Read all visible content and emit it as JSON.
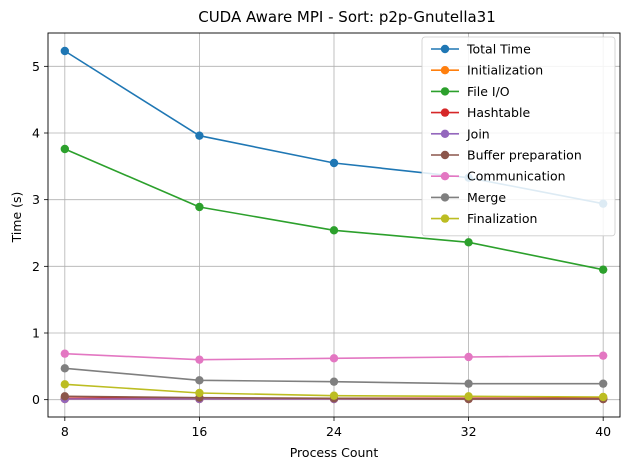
{
  "chart_data": {
    "type": "line",
    "title": "CUDA Aware MPI - Sort: p2p-Gnutella31",
    "xlabel": "Process Count",
    "ylabel": "Time (s)",
    "x": [
      8,
      16,
      24,
      32,
      40
    ],
    "xticks": [
      "8",
      "16",
      "24",
      "32",
      "40"
    ],
    "yticks": [
      "0",
      "1",
      "2",
      "3",
      "4",
      "5"
    ],
    "xlim": [
      7,
      41
    ],
    "ylim": [
      -0.26,
      5.5
    ],
    "grid": true,
    "legend_position": "top-right",
    "series": [
      {
        "name": "Total Time",
        "color": "#1f77b4",
        "values": [
          5.23,
          3.96,
          3.55,
          3.33,
          2.94
        ]
      },
      {
        "name": "Initialization",
        "color": "#ff7f0e",
        "values": [
          0.01,
          0.01,
          0.01,
          0.01,
          0.01
        ]
      },
      {
        "name": "File I/O",
        "color": "#2ca02c",
        "values": [
          3.76,
          2.89,
          2.54,
          2.36,
          1.95
        ]
      },
      {
        "name": "Hashtable",
        "color": "#d62728",
        "values": [
          0.02,
          0.02,
          0.02,
          0.02,
          0.02
        ]
      },
      {
        "name": "Join",
        "color": "#9467bd",
        "values": [
          0.01,
          0.01,
          0.01,
          0.01,
          0.01
        ]
      },
      {
        "name": "Buffer preparation",
        "color": "#8c564b",
        "values": [
          0.05,
          0.03,
          0.02,
          0.01,
          0.01
        ]
      },
      {
        "name": "Communication",
        "color": "#e377c2",
        "values": [
          0.69,
          0.6,
          0.62,
          0.64,
          0.66
        ]
      },
      {
        "name": "Merge",
        "color": "#7f7f7f",
        "values": [
          0.47,
          0.29,
          0.27,
          0.24,
          0.24
        ]
      },
      {
        "name": "Finalization",
        "color": "#bcbd22",
        "values": [
          0.23,
          0.1,
          0.06,
          0.05,
          0.04
        ]
      }
    ]
  }
}
